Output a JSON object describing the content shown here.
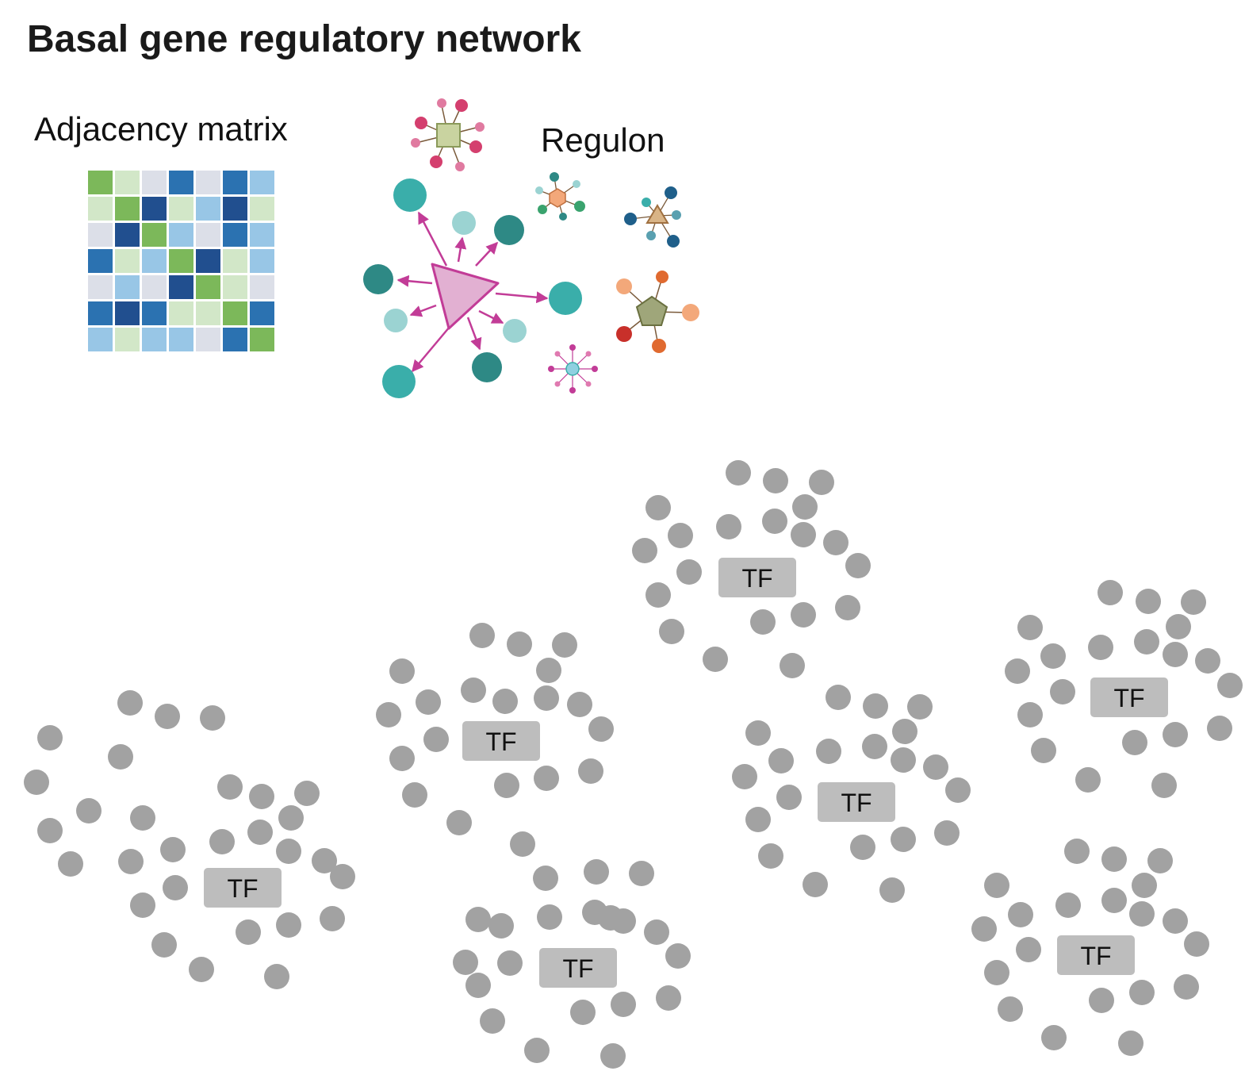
{
  "title": "Basal gene regulatory network",
  "adjacency_label": "Adjacency matrix",
  "regulon_label": "Regulon",
  "tf_label": "TF",
  "colors": {
    "green": "#7cb85a",
    "light_green": "#d2e7c8",
    "light_gray": "#dcdfe8",
    "blue": "#2b72b1",
    "dark_blue": "#214f8f",
    "light_blue": "#98c6e6",
    "dot_gray": "#a2a2a2",
    "tf_box": "#bdbdbd",
    "regulator_pink": "#e2b0d2",
    "arrow_magenta": "#c23c97",
    "teal": "#3aaeaa",
    "dark_teal": "#2e8985",
    "light_teal": "#9bd3d2"
  },
  "matrix": [
    [
      "G",
      "LG",
      "LGR",
      "B",
      "LGR",
      "B",
      "LB"
    ],
    [
      "LG",
      "G",
      "DB",
      "LG",
      "LB",
      "DB",
      "LG"
    ],
    [
      "LGR",
      "DB",
      "G",
      "LB",
      "LGR",
      "B",
      "LB"
    ],
    [
      "B",
      "LG",
      "LB",
      "G",
      "DB",
      "LG",
      "LB"
    ],
    [
      "LGR",
      "LB",
      "LGR",
      "DB",
      "G",
      "LG",
      "LGR"
    ],
    [
      "B",
      "DB",
      "B",
      "LG",
      "LG",
      "G",
      "B"
    ],
    [
      "LB",
      "LG",
      "LB",
      "LB",
      "LGR",
      "B",
      "G"
    ]
  ],
  "tf_clusters": [
    "cluster-1",
    "cluster-2",
    "cluster-3",
    "cluster-4",
    "cluster-5",
    "cluster-6",
    "cluster-7"
  ]
}
